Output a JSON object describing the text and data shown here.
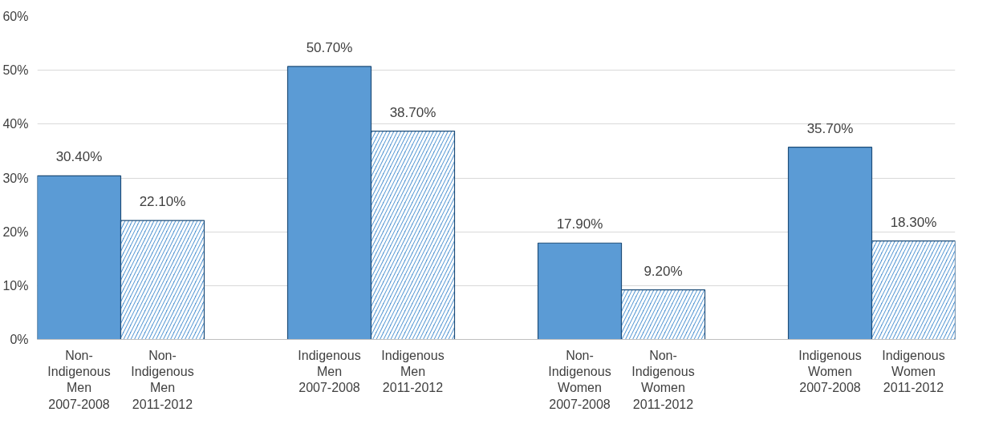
{
  "chart_data": {
    "type": "bar",
    "categories": [
      "Non-\nIndigenous\nMen\n2007-2008",
      "Non-\nIndigenous\nMen\n2011-2012",
      "Indigenous\nMen\n2007-2008",
      "Indigenous\nMen\n2011-2012",
      "Non-\nIndigenous\nWomen\n2007-2008",
      "Non-\nIndigenous\nWomen\n2011-2012",
      "Indigenous\nWomen\n2007-2008",
      "Indigenous\nWomen\n2011-2012"
    ],
    "series": [
      {
        "color": "#5b9bd5",
        "values": [
          30.4,
          null,
          50.7,
          null,
          17.9,
          null,
          35.7,
          null
        ],
        "value_labels": [
          "30.40%",
          null,
          "50.70%",
          null,
          "17.90%",
          null,
          "35.70%",
          null
        ]
      },
      {
        "color": "#5b9bd5",
        "values": [
          null,
          22.1,
          null,
          38.7,
          null,
          9.2,
          null,
          18.3
        ],
        "value_labels": [
          null,
          "22.10%",
          null,
          "38.70%",
          null,
          "9.20%",
          null,
          "18.30%"
        ]
      }
    ],
    "ylim": [
      0,
      60
    ],
    "yticks": [
      {
        "value": 0,
        "label": "0%"
      },
      {
        "value": 10,
        "label": "10%"
      },
      {
        "value": 20,
        "label": "20%"
      },
      {
        "value": 30,
        "label": "30%"
      },
      {
        "value": 40,
        "label": "40%"
      },
      {
        "value": 50,
        "label": "50%"
      },
      {
        "value": 60,
        "label": "60%"
      }
    ],
    "grid": "y"
  }
}
